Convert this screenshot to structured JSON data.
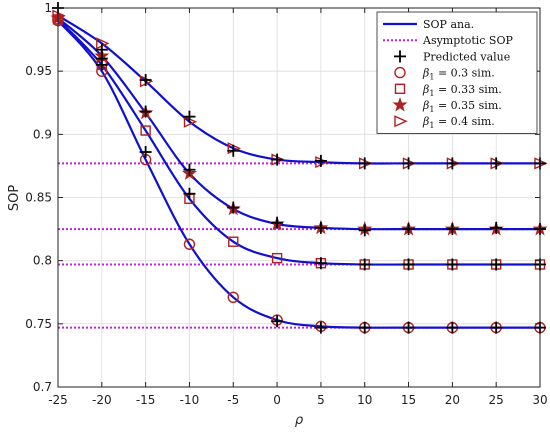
{
  "chart_data": {
    "type": "line",
    "xlabel": "ρ",
    "ylabel": "SOP",
    "xlim": [
      -25,
      30
    ],
    "ylim": [
      0.7,
      1.0
    ],
    "x_ticks": [
      "-25",
      "-20",
      "-15",
      "-10",
      "-5",
      "0",
      "5",
      "10",
      "15",
      "20",
      "25",
      "30"
    ],
    "y_ticks": [
      "0.7",
      "0.75",
      "0.8",
      "0.85",
      "0.9",
      "0.95",
      "1"
    ],
    "grid": true,
    "legend_placement": "top-right",
    "x": [
      -25,
      -20,
      -15,
      -10,
      -5,
      0,
      5,
      10,
      15,
      20,
      25,
      30
    ],
    "curves": [
      {
        "beta": "0.3",
        "marker": "circle",
        "values": [
          0.99,
          0.95,
          0.88,
          0.813,
          0.771,
          0.753,
          0.748,
          0.747,
          0.747,
          0.747,
          0.747,
          0.747
        ],
        "asymptote": 0.747
      },
      {
        "beta": "0.33",
        "marker": "square",
        "values": [
          0.991,
          0.955,
          0.903,
          0.849,
          0.815,
          0.802,
          0.798,
          0.797,
          0.797,
          0.797,
          0.797,
          0.797
        ],
        "asymptote": 0.797
      },
      {
        "beta": "0.35",
        "marker": "star",
        "values": [
          0.992,
          0.962,
          0.917,
          0.869,
          0.841,
          0.829,
          0.826,
          0.825,
          0.825,
          0.825,
          0.825,
          0.825
        ],
        "asymptote": 0.825
      },
      {
        "beta": "0.4",
        "marker": "triangle",
        "values": [
          0.994,
          0.972,
          0.942,
          0.91,
          0.889,
          0.88,
          0.878,
          0.877,
          0.877,
          0.877,
          0.877,
          0.877
        ],
        "asymptote": 0.877
      }
    ],
    "predicted_points": [
      {
        "x": -25,
        "y": 1.0
      },
      {
        "x": -20,
        "y": 0.955
      },
      {
        "x": -15,
        "y": 0.886
      },
      {
        "x": -10,
        "y": 0.853
      },
      {
        "x": -5,
        "y": 0.842
      },
      {
        "x": -20,
        "y": 0.96
      },
      {
        "x": -15,
        "y": 0.918
      },
      {
        "x": -10,
        "y": 0.872
      },
      {
        "x": -5,
        "y": 0.887
      },
      {
        "x": 0,
        "y": 0.83
      },
      {
        "x": -20,
        "y": 0.967
      },
      {
        "x": -15,
        "y": 0.943
      },
      {
        "x": -10,
        "y": 0.914
      },
      {
        "x": 0,
        "y": 0.88
      },
      {
        "x": 5,
        "y": 0.826
      },
      {
        "x": 10,
        "y": 0.824
      },
      {
        "x": 15,
        "y": 0.825
      },
      {
        "x": 20,
        "y": 0.825
      },
      {
        "x": 25,
        "y": 0.826
      },
      {
        "x": 30,
        "y": 0.825
      },
      {
        "x": 5,
        "y": 0.879
      },
      {
        "x": 10,
        "y": 0.877
      },
      {
        "x": 15,
        "y": 0.877
      },
      {
        "x": 20,
        "y": 0.877
      },
      {
        "x": 25,
        "y": 0.877
      },
      {
        "x": 30,
        "y": 0.877
      },
      {
        "x": 5,
        "y": 0.798
      },
      {
        "x": 10,
        "y": 0.797
      },
      {
        "x": 15,
        "y": 0.797
      },
      {
        "x": 20,
        "y": 0.797
      },
      {
        "x": 25,
        "y": 0.797
      },
      {
        "x": 30,
        "y": 0.797
      },
      {
        "x": 0,
        "y": 0.752
      },
      {
        "x": 5,
        "y": 0.747
      },
      {
        "x": 10,
        "y": 0.747
      },
      {
        "x": 15,
        "y": 0.747
      },
      {
        "x": 20,
        "y": 0.747
      },
      {
        "x": 25,
        "y": 0.747
      },
      {
        "x": 30,
        "y": 0.747
      }
    ],
    "legend": {
      "entries": [
        {
          "label": "SOP ana.",
          "kind": "line"
        },
        {
          "label": "Asymptotic SOP",
          "kind": "dotted"
        },
        {
          "label": "Predicted value",
          "kind": "plus"
        },
        {
          "label": "β",
          "sub": "1",
          "suffix": "= 0.3 sim.",
          "kind": "circle"
        },
        {
          "label": "β",
          "sub": "1",
          "suffix": "= 0.33 sim.",
          "kind": "square"
        },
        {
          "label": "β",
          "sub": "1",
          "suffix": "= 0.35 sim.",
          "kind": "star"
        },
        {
          "label": "β",
          "sub": "1",
          "suffix": "= 0.4 sim.",
          "kind": "triangle"
        }
      ]
    },
    "colors": {
      "line": "#1010d0",
      "asymptote": "#c020e0",
      "marker": "#b02020",
      "predicted": "#000000",
      "grid": "#dcdcdc"
    }
  }
}
